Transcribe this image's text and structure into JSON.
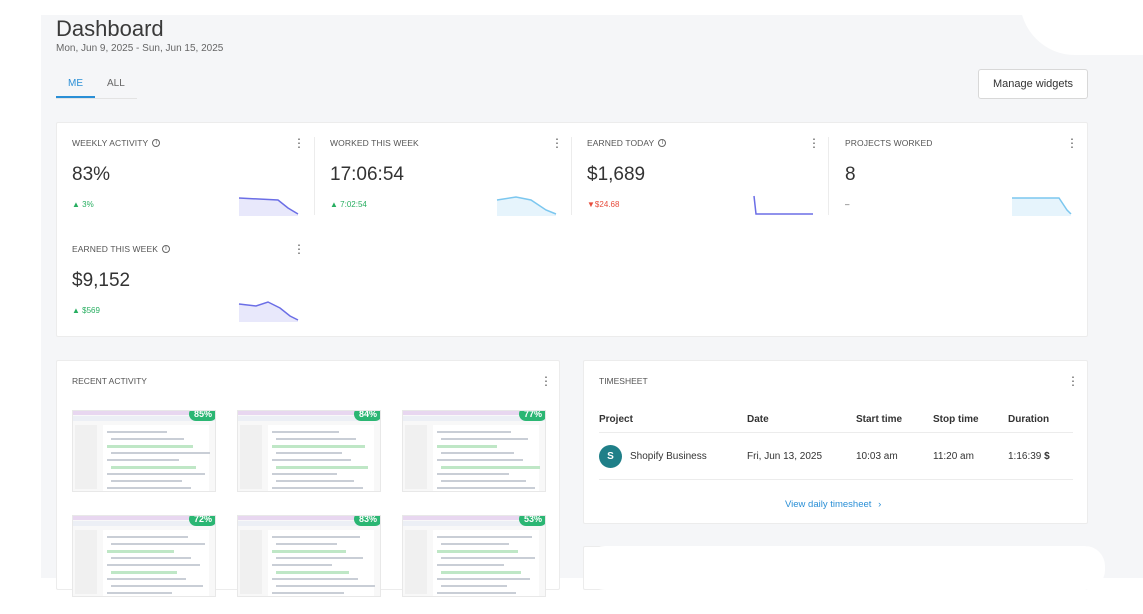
{
  "header": {
    "title": "Dashboard",
    "date_range": "Mon, Jun 9, 2025 - Sun, Jun 15, 2025"
  },
  "tabs": [
    {
      "label": "ME",
      "active": true
    },
    {
      "label": "ALL",
      "active": false
    }
  ],
  "manage_widgets_label": "Manage widgets",
  "stats": [
    {
      "label": "WEEKLY ACTIVITY",
      "value": "83%",
      "delta": "3%",
      "direction": "up"
    },
    {
      "label": "WORKED THIS WEEK",
      "value": "17:06:54",
      "delta": "7:02:54",
      "direction": "up"
    },
    {
      "label": "EARNED TODAY",
      "value": "$1,689",
      "delta": "$24.68",
      "direction": "down"
    },
    {
      "label": "PROJECTS WORKED",
      "value": "8",
      "delta": "–",
      "direction": "none"
    },
    {
      "label": "EARNED THIS WEEK",
      "value": "$9,152",
      "delta": "$569",
      "direction": "up"
    }
  ],
  "recent_activity": {
    "title": "RECENT ACTIVITY",
    "items": [
      {
        "percent": "85%"
      },
      {
        "percent": "84%"
      },
      {
        "percent": "77%"
      },
      {
        "percent": "72%"
      },
      {
        "percent": "83%"
      },
      {
        "percent": "53%"
      }
    ]
  },
  "timesheet": {
    "title": "TIMESHEET",
    "columns": [
      "Project",
      "Date",
      "Start time",
      "Stop time",
      "Duration"
    ],
    "rows": [
      {
        "avatar": "S",
        "project": "Shopify Business",
        "date": "Fri, Jun 13, 2025",
        "start": "10:03 am",
        "stop": "11:20 am",
        "duration": "1:16:39",
        "billable_icon": "$"
      }
    ],
    "link_label": "View daily timesheet",
    "link_icon": "›"
  },
  "colors": {
    "accent": "#2a8fd6",
    "up": "#27ae60",
    "down": "#e74c3c",
    "badge": "#2bb673",
    "avatar": "#1f7f88",
    "spark_purple": "#6b6ee6",
    "spark_blue": "#7cc7ef"
  }
}
